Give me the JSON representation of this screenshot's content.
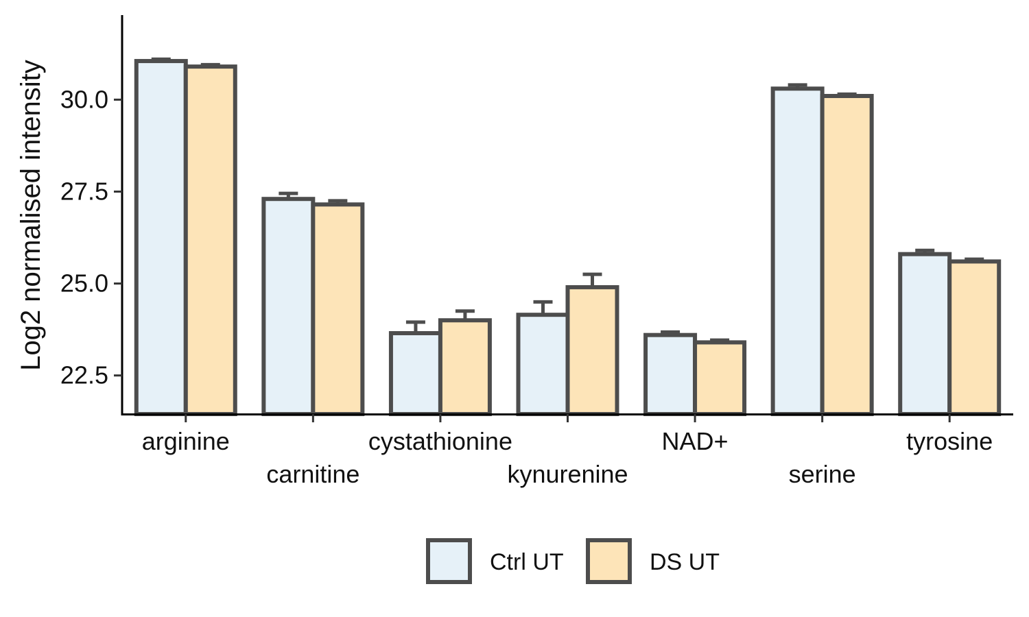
{
  "chart_data": {
    "type": "bar",
    "ylabel": "Log2 normalised intensity",
    "xlabel": "",
    "ylim": [
      21.45,
      32.3
    ],
    "yticks": [
      "22.5",
      "25.0",
      "27.5",
      "30.0"
    ],
    "grid": false,
    "legend_position": "bottom",
    "categories": [
      "arginine",
      "carnitine",
      "cystathionine",
      "kynurenine",
      "NAD+",
      "serine",
      "tyrosine"
    ],
    "series": [
      {
        "name": "Ctrl UT",
        "color": "#e6f1f8",
        "values": [
          31.05,
          27.3,
          23.65,
          24.15,
          23.6,
          30.3,
          25.8
        ],
        "errors": [
          0.05,
          0.15,
          0.3,
          0.35,
          0.08,
          0.1,
          0.1
        ]
      },
      {
        "name": "DS UT",
        "color": "#fde4b8",
        "values": [
          30.9,
          27.15,
          24.0,
          24.9,
          23.4,
          30.1,
          25.6
        ],
        "errors": [
          0.05,
          0.1,
          0.25,
          0.35,
          0.06,
          0.05,
          0.06
        ]
      }
    ]
  }
}
